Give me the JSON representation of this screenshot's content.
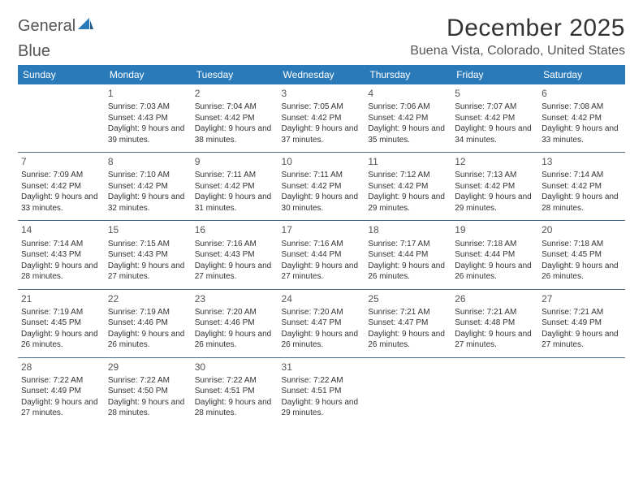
{
  "logo": {
    "word1": "General",
    "word2": "Blue"
  },
  "title": "December 2025",
  "location": "Buena Vista, Colorado, United States",
  "colors": {
    "header_bg": "#2a7ab9",
    "header_text": "#ffffff",
    "rule": "#4a6a88",
    "body_text": "#333333",
    "muted_text": "#555555",
    "background": "#ffffff"
  },
  "dow": [
    "Sunday",
    "Monday",
    "Tuesday",
    "Wednesday",
    "Thursday",
    "Friday",
    "Saturday"
  ],
  "weeks": [
    [
      null,
      {
        "n": "1",
        "sr": "7:03 AM",
        "ss": "4:43 PM",
        "dl": "9 hours and 39 minutes."
      },
      {
        "n": "2",
        "sr": "7:04 AM",
        "ss": "4:42 PM",
        "dl": "9 hours and 38 minutes."
      },
      {
        "n": "3",
        "sr": "7:05 AM",
        "ss": "4:42 PM",
        "dl": "9 hours and 37 minutes."
      },
      {
        "n": "4",
        "sr": "7:06 AM",
        "ss": "4:42 PM",
        "dl": "9 hours and 35 minutes."
      },
      {
        "n": "5",
        "sr": "7:07 AM",
        "ss": "4:42 PM",
        "dl": "9 hours and 34 minutes."
      },
      {
        "n": "6",
        "sr": "7:08 AM",
        "ss": "4:42 PM",
        "dl": "9 hours and 33 minutes."
      }
    ],
    [
      {
        "n": "7",
        "sr": "7:09 AM",
        "ss": "4:42 PM",
        "dl": "9 hours and 33 minutes."
      },
      {
        "n": "8",
        "sr": "7:10 AM",
        "ss": "4:42 PM",
        "dl": "9 hours and 32 minutes."
      },
      {
        "n": "9",
        "sr": "7:11 AM",
        "ss": "4:42 PM",
        "dl": "9 hours and 31 minutes."
      },
      {
        "n": "10",
        "sr": "7:11 AM",
        "ss": "4:42 PM",
        "dl": "9 hours and 30 minutes."
      },
      {
        "n": "11",
        "sr": "7:12 AM",
        "ss": "4:42 PM",
        "dl": "9 hours and 29 minutes."
      },
      {
        "n": "12",
        "sr": "7:13 AM",
        "ss": "4:42 PM",
        "dl": "9 hours and 29 minutes."
      },
      {
        "n": "13",
        "sr": "7:14 AM",
        "ss": "4:42 PM",
        "dl": "9 hours and 28 minutes."
      }
    ],
    [
      {
        "n": "14",
        "sr": "7:14 AM",
        "ss": "4:43 PM",
        "dl": "9 hours and 28 minutes."
      },
      {
        "n": "15",
        "sr": "7:15 AM",
        "ss": "4:43 PM",
        "dl": "9 hours and 27 minutes."
      },
      {
        "n": "16",
        "sr": "7:16 AM",
        "ss": "4:43 PM",
        "dl": "9 hours and 27 minutes."
      },
      {
        "n": "17",
        "sr": "7:16 AM",
        "ss": "4:44 PM",
        "dl": "9 hours and 27 minutes."
      },
      {
        "n": "18",
        "sr": "7:17 AM",
        "ss": "4:44 PM",
        "dl": "9 hours and 26 minutes."
      },
      {
        "n": "19",
        "sr": "7:18 AM",
        "ss": "4:44 PM",
        "dl": "9 hours and 26 minutes."
      },
      {
        "n": "20",
        "sr": "7:18 AM",
        "ss": "4:45 PM",
        "dl": "9 hours and 26 minutes."
      }
    ],
    [
      {
        "n": "21",
        "sr": "7:19 AM",
        "ss": "4:45 PM",
        "dl": "9 hours and 26 minutes."
      },
      {
        "n": "22",
        "sr": "7:19 AM",
        "ss": "4:46 PM",
        "dl": "9 hours and 26 minutes."
      },
      {
        "n": "23",
        "sr": "7:20 AM",
        "ss": "4:46 PM",
        "dl": "9 hours and 26 minutes."
      },
      {
        "n": "24",
        "sr": "7:20 AM",
        "ss": "4:47 PM",
        "dl": "9 hours and 26 minutes."
      },
      {
        "n": "25",
        "sr": "7:21 AM",
        "ss": "4:47 PM",
        "dl": "9 hours and 26 minutes."
      },
      {
        "n": "26",
        "sr": "7:21 AM",
        "ss": "4:48 PM",
        "dl": "9 hours and 27 minutes."
      },
      {
        "n": "27",
        "sr": "7:21 AM",
        "ss": "4:49 PM",
        "dl": "9 hours and 27 minutes."
      }
    ],
    [
      {
        "n": "28",
        "sr": "7:22 AM",
        "ss": "4:49 PM",
        "dl": "9 hours and 27 minutes."
      },
      {
        "n": "29",
        "sr": "7:22 AM",
        "ss": "4:50 PM",
        "dl": "9 hours and 28 minutes."
      },
      {
        "n": "30",
        "sr": "7:22 AM",
        "ss": "4:51 PM",
        "dl": "9 hours and 28 minutes."
      },
      {
        "n": "31",
        "sr": "7:22 AM",
        "ss": "4:51 PM",
        "dl": "9 hours and 29 minutes."
      },
      null,
      null,
      null
    ]
  ],
  "labels": {
    "sunrise": "Sunrise:",
    "sunset": "Sunset:",
    "daylight": "Daylight:"
  }
}
